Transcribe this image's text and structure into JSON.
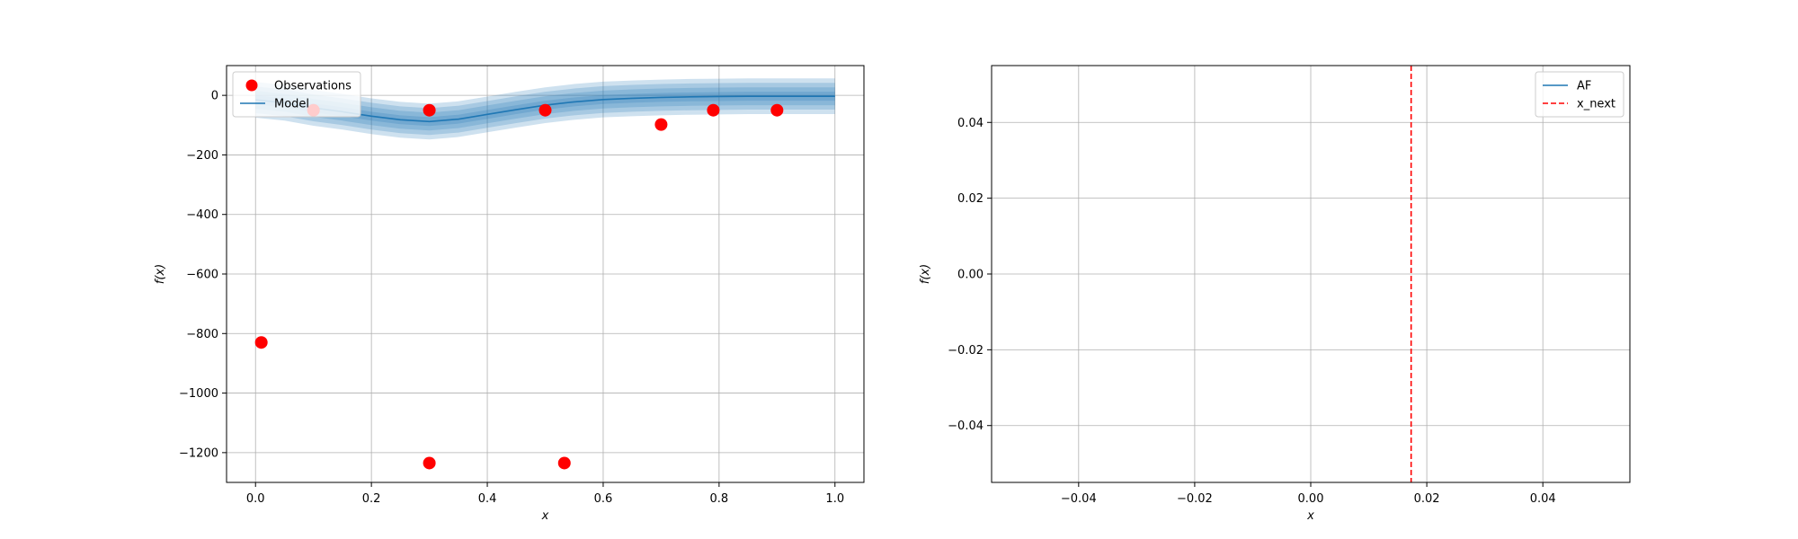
{
  "chart_data": [
    {
      "type": "scatter",
      "title": "",
      "xlabel": "x",
      "ylabel": "f(x)",
      "xlim": [
        -0.05,
        1.05
      ],
      "ylim": [
        -1300,
        100
      ],
      "xticks": [
        0.0,
        0.2,
        0.4,
        0.6,
        0.8,
        1.0
      ],
      "xtick_labels": [
        "0.0",
        "0.2",
        "0.4",
        "0.6",
        "0.8",
        "1.0"
      ],
      "yticks": [
        0,
        -200,
        -400,
        -600,
        -800,
        -1000,
        -1200
      ],
      "ytick_labels": [
        "0",
        "−200",
        "−400",
        "−600",
        "−800",
        "−1000",
        "−1200"
      ],
      "grid": true,
      "legend_position": "top-left",
      "series": [
        {
          "name": "Observations",
          "kind": "scatter",
          "color": "#ff0000",
          "points": [
            [
              0.01,
              -830
            ],
            [
              0.1,
              -50
            ],
            [
              0.3,
              -50
            ],
            [
              0.3,
              -1235
            ],
            [
              0.5,
              -50
            ],
            [
              0.533,
              -1235
            ],
            [
              0.7,
              -98
            ],
            [
              0.79,
              -50
            ],
            [
              0.9,
              -50
            ]
          ]
        },
        {
          "name": "Model",
          "kind": "line",
          "color": "#1f77b4",
          "x": [
            0.0,
            0.05,
            0.1,
            0.15,
            0.2,
            0.25,
            0.3,
            0.35,
            0.4,
            0.45,
            0.5,
            0.55,
            0.6,
            0.65,
            0.7,
            0.75,
            0.8,
            0.85,
            0.9,
            0.95,
            1.0
          ],
          "mean": [
            -15,
            -25,
            -42,
            -55,
            -70,
            -82,
            -88,
            -80,
            -64,
            -48,
            -33,
            -22,
            -14,
            -10,
            -7,
            -5,
            -4,
            -3,
            -3,
            -3,
            -3
          ],
          "bands": [
            15,
            30,
            45,
            60
          ],
          "band_color": "#1f77b4"
        }
      ]
    },
    {
      "type": "line",
      "title": "",
      "xlabel": "x",
      "ylabel": "f(x)",
      "xlim": [
        -0.055,
        0.055
      ],
      "ylim": [
        -0.055,
        0.055
      ],
      "xticks": [
        -0.04,
        -0.02,
        0.0,
        0.02,
        0.04
      ],
      "xtick_labels": [
        "−0.04",
        "−0.02",
        "0.00",
        "0.02",
        "0.04"
      ],
      "yticks": [
        0.04,
        0.02,
        0.0,
        -0.02,
        -0.04
      ],
      "ytick_labels": [
        "0.04",
        "0.02",
        "0.00",
        "−0.02",
        "−0.04"
      ],
      "grid": true,
      "legend_position": "top-right",
      "series": [
        {
          "name": "AF",
          "kind": "line",
          "color": "#1f77b4",
          "x": [],
          "y": []
        },
        {
          "name": "x_next",
          "kind": "vline",
          "color": "#ff0000",
          "dash": true,
          "x": 0.0173
        }
      ]
    }
  ]
}
